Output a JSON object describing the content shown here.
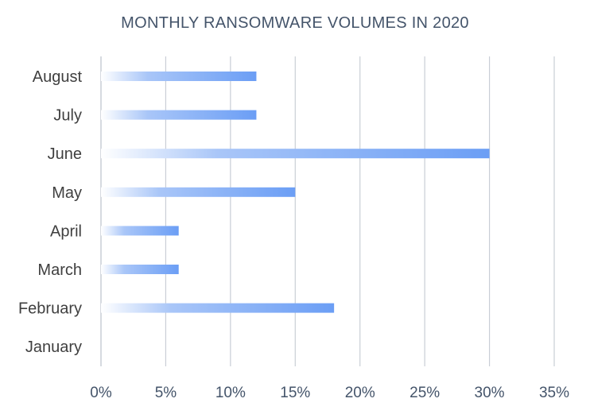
{
  "chart_data": {
    "type": "bar",
    "orientation": "horizontal",
    "title": "MONTHLY RANSOMWARE VOLUMES IN 2020",
    "xlabel": "",
    "ylabel": "",
    "categories": [
      "January",
      "February",
      "March",
      "April",
      "May",
      "June",
      "July",
      "August"
    ],
    "values": [
      0,
      18,
      6,
      6,
      15,
      30,
      12,
      12
    ],
    "xlim": [
      0,
      35
    ],
    "x_ticks": [
      0,
      5,
      10,
      15,
      20,
      25,
      30,
      35
    ],
    "x_tick_labels": [
      "0%",
      "5%",
      "10%",
      "15%",
      "20%",
      "25%",
      "30%",
      "35%"
    ],
    "value_unit": "%",
    "grid": true,
    "legend": "none",
    "colors": {
      "bar": "#6B9EF5",
      "bar_fade": "#FFFFFF",
      "grid": "#C9CED6",
      "axis_text": "#44546A",
      "category_text": "#3F3F3F"
    }
  }
}
